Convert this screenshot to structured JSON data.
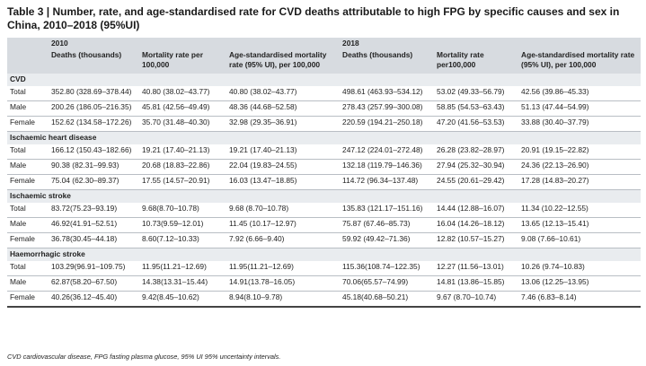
{
  "title": "Table 3 | Number, rate, and age-standardised rate for CVD deaths attributable to high FPG by specific causes and sex in China, 2010–2018 (95%UI)",
  "years": [
    "2010",
    "2018"
  ],
  "columns": [
    "Deaths (thousands)",
    "Mortality rate per 100,000",
    "Age-standardised mortality rate (95% UI), per 100,000",
    "Deaths (thousands)",
    "Mortality rate per100,000",
    "Age-standardised mortality rate (95% UI), per 100,000"
  ],
  "sections": [
    {
      "name": "CVD",
      "rows": [
        {
          "sex": "Total",
          "values": [
            "352.80 (328.69–378.44)",
            "40.80 (38.02–43.77)",
            "40.80 (38.02–43.77)",
            "498.61 (463.93–534.12)",
            "53.02 (49.33–56.79)",
            "42.56 (39.86–45.33)"
          ]
        },
        {
          "sex": "Male",
          "values": [
            "200.26 (186.05–216.35)",
            "45.81 (42.56–49.49)",
            "48.36 (44.68–52.58)",
            "278.43 (257.99–300.08)",
            "58.85 (54.53–63.43)",
            "51.13 (47.44–54.99)"
          ]
        },
        {
          "sex": "Female",
          "values": [
            "152.62 (134.58–172.26)",
            "35.70 (31.48–40.30)",
            "32.98 (29.35–36.91)",
            "220.59 (194.21–250.18)",
            "47.20 (41.56–53.53)",
            "33.88 (30.40–37.79)"
          ]
        }
      ]
    },
    {
      "name": "Ischaemic heart disease",
      "rows": [
        {
          "sex": "Total",
          "values": [
            "166.12 (150.43–182.66)",
            "19.21 (17.40–21.13)",
            "19.21 (17.40–21.13)",
            "247.12 (224.01–272.48)",
            "26.28 (23.82–28.97)",
            "20.91 (19.15–22.82)"
          ]
        },
        {
          "sex": "Male",
          "values": [
            "90.38 (82.31–99.93)",
            "20.68 (18.83–22.86)",
            "22.04 (19.83–24.55)",
            "132.18 (119.79–146.36)",
            "27.94 (25.32–30.94)",
            "24.36 (22.13–26.90)"
          ]
        },
        {
          "sex": "Female",
          "values": [
            "75.04 (62.30–89.37)",
            "17.55 (14.57–20.91)",
            "16.03 (13.47–18.85)",
            "114.72 (96.34–137.48)",
            "24.55 (20.61–29.42)",
            "17.28 (14.83–20.27)"
          ]
        }
      ]
    },
    {
      "name": "Ischaemic stroke",
      "rows": [
        {
          "sex": "Total",
          "values": [
            "83.72(75.23–93.19)",
            "9.68(8.70–10.78)",
            "9.68 (8.70–10.78)",
            "135.83 (121.17–151.16)",
            "14.44 (12.88–16.07)",
            "11.34 (10.22–12.55)"
          ]
        },
        {
          "sex": "Male",
          "values": [
            "46.92(41.91–52.51)",
            "10.73(9.59–12.01)",
            "11.45 (10.17–12.97)",
            "75.87 (67.46–85.73)",
            "16.04 (14.26–18.12)",
            "13.65 (12.13–15.41)"
          ]
        },
        {
          "sex": "Female",
          "values": [
            "36.78(30.45–44.18)",
            "8.60(7.12–10.33)",
            "7.92 (6.66–9.40)",
            "59.92 (49.42–71.36)",
            "12.82 (10.57–15.27)",
            "9.08 (7.66–10.61)"
          ]
        }
      ]
    },
    {
      "name": "Haemorrhagic stroke",
      "rows": [
        {
          "sex": "Total",
          "values": [
            "103.29(96.91–109.75)",
            "11.95(11.21–12.69)",
            "11.95(11.21–12.69)",
            "115.36(108.74–122.35)",
            "12.27 (11.56–13.01)",
            "10.26 (9.74–10.83)"
          ]
        },
        {
          "sex": "Male",
          "values": [
            "62.87(58.20–67.50)",
            "14.38(13.31–15.44)",
            "14.91(13.78–16.05)",
            "70.06(65.57–74.99)",
            "14.81 (13.86–15.85)",
            "13.06 (12.25–13.95)"
          ]
        },
        {
          "sex": "Female",
          "values": [
            "40.26(36.12–45.40)",
            "9.42(8.45–10.62)",
            "8.94(8.10–9.78)",
            "45.18(40.68–50.21)",
            "9.67 (8.70–10.74)",
            "7.46 (6.83–8.14)"
          ]
        }
      ]
    }
  ],
  "footnote": "CVD cardiovascular disease, FPG fasting plasma glucose, 95% UI 95% uncertainty intervals."
}
